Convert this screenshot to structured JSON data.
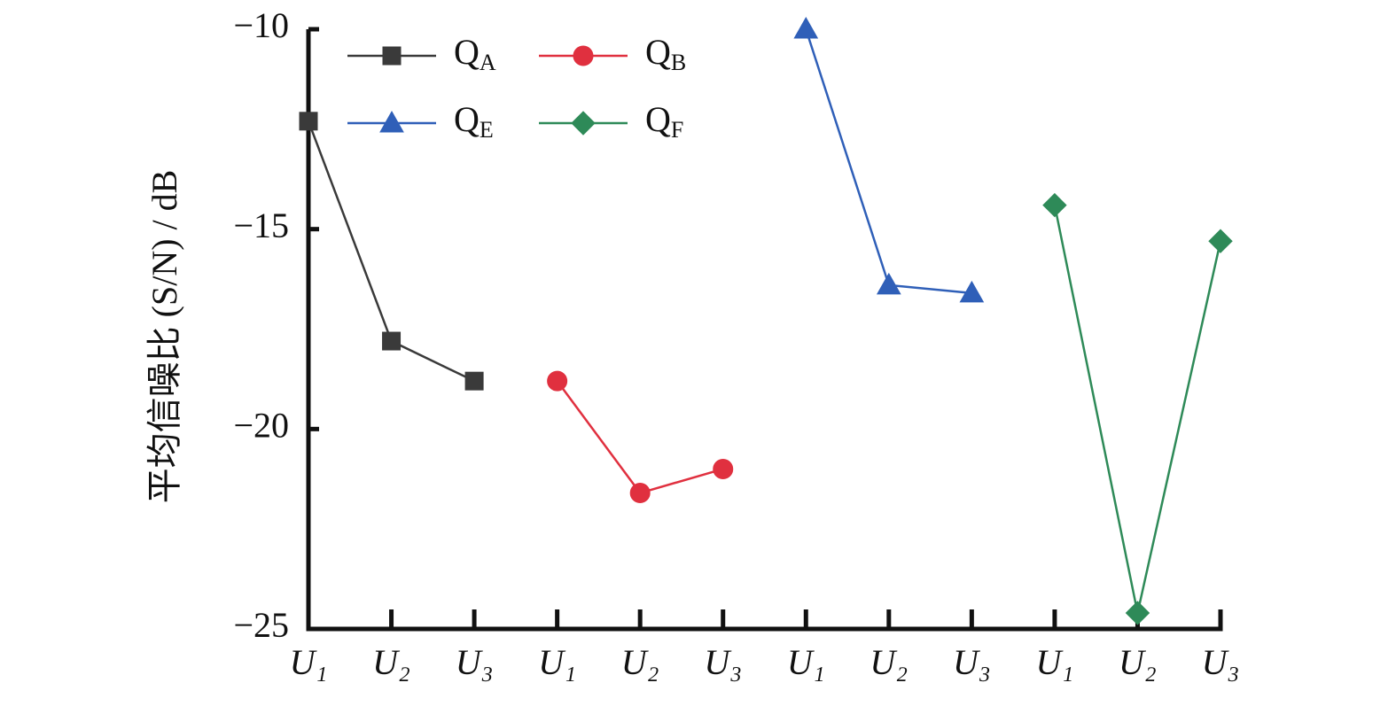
{
  "chart_data": {
    "type": "line",
    "y_label": "平均信噪比 (S/N) / dB",
    "categories": [
      "U₁",
      "U₂",
      "U₃",
      "U₁",
      "U₂",
      "U₃",
      "U₁",
      "U₂",
      "U₃",
      "U₁",
      "U₂",
      "U₃"
    ],
    "ylim": [
      -25,
      -10
    ],
    "yticks": [
      {
        "value": -10,
        "label": "−10"
      },
      {
        "value": -15,
        "label": "−15"
      },
      {
        "value": -20,
        "label": "−20"
      },
      {
        "value": -25,
        "label": "−25"
      }
    ],
    "series": [
      {
        "name": "Q",
        "name_sub": "A",
        "color": "#3a3a3a",
        "marker": "square",
        "values": [
          -12.3,
          -17.8,
          -18.8,
          null,
          null,
          null,
          null,
          null,
          null,
          null,
          null,
          null
        ]
      },
      {
        "name": "Q",
        "name_sub": "B",
        "color": "#e0303f",
        "marker": "circle",
        "values": [
          null,
          null,
          null,
          -18.8,
          -21.6,
          -21.0,
          null,
          null,
          null,
          null,
          null,
          null
        ]
      },
      {
        "name": "Q",
        "name_sub": "E",
        "color": "#2f5fb8",
        "marker": "triangle",
        "values": [
          null,
          null,
          null,
          null,
          null,
          null,
          -10.0,
          -16.4,
          -16.6,
          null,
          null,
          null
        ]
      },
      {
        "name": "Q",
        "name_sub": "F",
        "color": "#2e8a58",
        "marker": "diamond",
        "values": [
          null,
          null,
          null,
          null,
          null,
          null,
          null,
          null,
          null,
          -14.4,
          -24.6,
          -15.3
        ]
      }
    ]
  }
}
